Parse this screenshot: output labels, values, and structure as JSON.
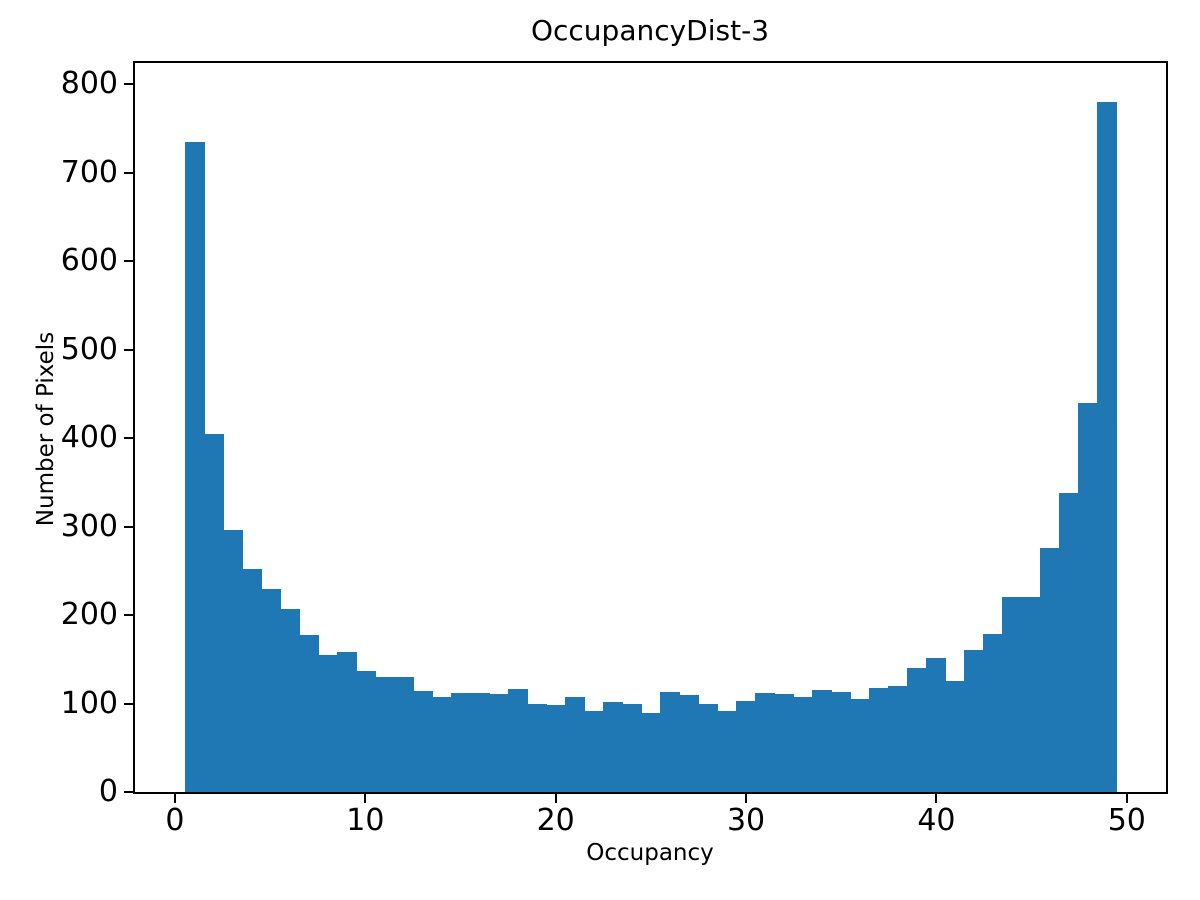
{
  "title": "OccupancyDist-3",
  "chart_data": {
    "type": "bar",
    "subtype": "histogram",
    "title": "OccupancyDist-3",
    "xlabel": "Occupancy",
    "ylabel": "Number of Pixels",
    "bar_color": "#1f77b4",
    "grid": false,
    "legend": null,
    "bin_start": 0.55,
    "bin_width": 0.998,
    "bin_centers": [
      1,
      2,
      3,
      4,
      5,
      6,
      7,
      8,
      9,
      10,
      11,
      12,
      13,
      14,
      15,
      16,
      17,
      18,
      19,
      20,
      21,
      22,
      23,
      24,
      25,
      26,
      27,
      28,
      29,
      30,
      31,
      32,
      33,
      34,
      35,
      36,
      37,
      38,
      39,
      40,
      41,
      42,
      43,
      44,
      45,
      46,
      47,
      48,
      49
    ],
    "values": [
      735,
      405,
      296,
      252,
      230,
      207,
      178,
      155,
      158,
      137,
      130,
      130,
      114,
      107,
      112,
      112,
      111,
      117,
      100,
      98,
      107,
      92,
      102,
      100,
      89,
      113,
      110,
      100,
      92,
      103,
      112,
      111,
      107,
      115,
      113,
      105,
      118,
      120,
      140,
      152,
      125,
      161,
      179,
      220,
      220,
      276,
      338,
      440,
      780
    ],
    "x_ticks": [
      0,
      10,
      20,
      30,
      40,
      50
    ],
    "y_ticks": [
      0,
      100,
      200,
      300,
      400,
      500,
      600,
      700,
      800
    ],
    "xlim": [
      -2.1,
      52.06
    ],
    "ylim": [
      0,
      824
    ]
  }
}
